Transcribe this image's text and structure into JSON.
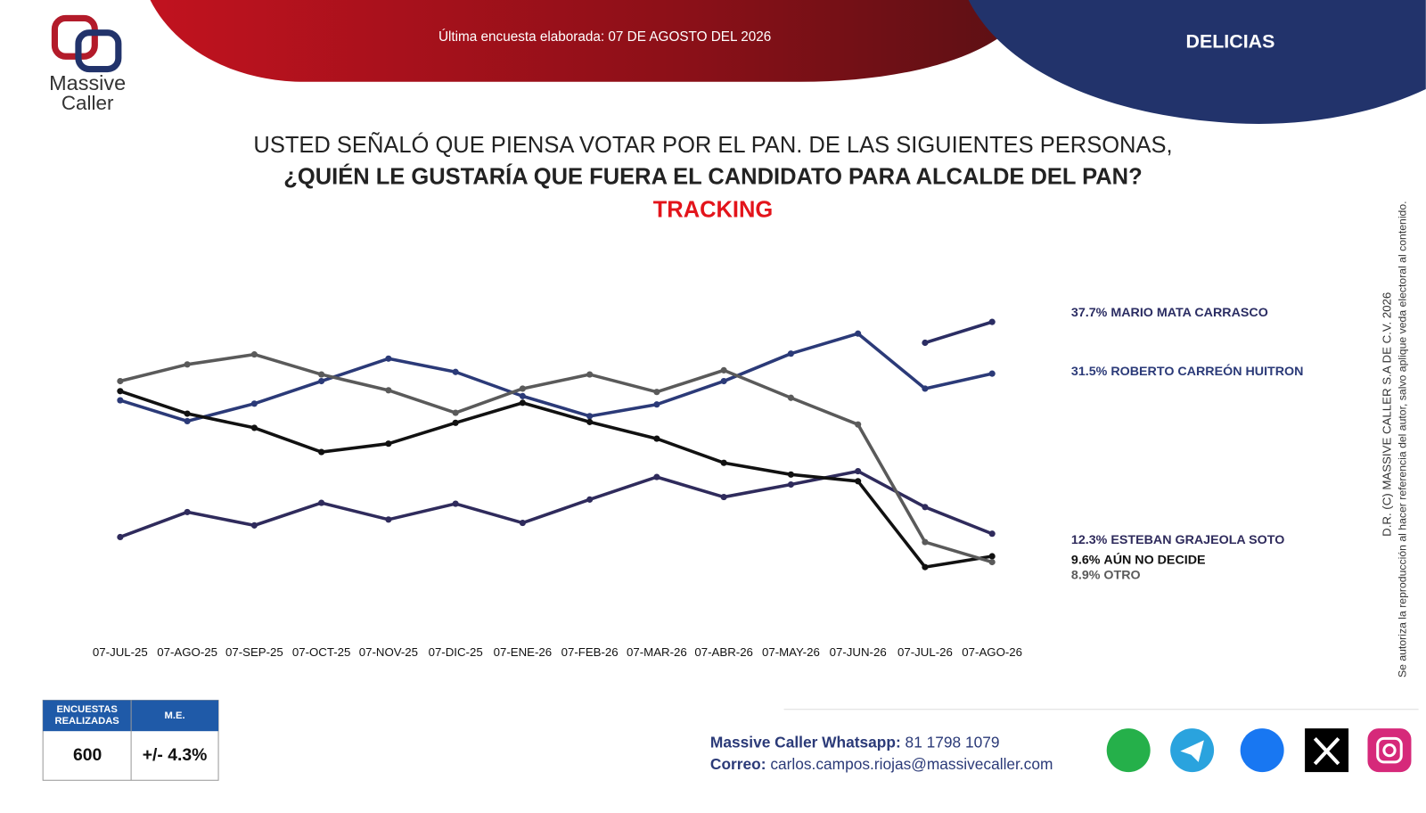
{
  "header": {
    "logo_line1": "Massive",
    "logo_line2": "Caller",
    "survey_date": "Última encuesta elaborada: 07 DE AGOSTO DEL 2026",
    "place": "DELICIAS"
  },
  "chart_data": {
    "type": "line",
    "title_lines": [
      "USTED SEÑALÓ QUE PIENSA VOTAR POR EL PAN. DE LAS SIGUIENTES PERSONAS,",
      "¿QUIÉN LE GUSTARÍA QUE FUERA EL CANDIDATO PARA ALCALDE DEL PAN?"
    ],
    "subtitle": "TRACKING",
    "categories": [
      "07-JUL-25",
      "07-AGO-25",
      "07-SEP-25",
      "07-OCT-25",
      "07-NOV-25",
      "07-DIC-25",
      "07-ENE-26",
      "07-FEB-26",
      "07-MAR-26",
      "07-ABR-26",
      "07-MAY-26",
      "07-JUN-26",
      "07-JUL-26",
      "07-AGO-26"
    ],
    "ylim": [
      0,
      40
    ],
    "series": [
      {
        "name": "MARIO MATA CARRASCO",
        "color": "#2b2d63",
        "values": [
          null,
          null,
          null,
          null,
          null,
          null,
          null,
          null,
          null,
          null,
          null,
          null,
          35.2,
          37.7
        ],
        "value_labels": [
          null,
          null,
          null,
          null,
          null,
          null,
          null,
          null,
          null,
          null,
          null,
          null,
          null,
          "37.7%"
        ]
      },
      {
        "name": "ROBERTO CARREÓN HUITRON",
        "color": "#2b3a78",
        "values": [
          28.3,
          25.8,
          27.9,
          30.6,
          33.3,
          31.7,
          28.8,
          26.4,
          27.8,
          30.6,
          33.9,
          36.3,
          29.7,
          31.5
        ],
        "value_labels": [
          null,
          null,
          null,
          null,
          null,
          null,
          null,
          null,
          null,
          null,
          null,
          null,
          null,
          "31.5%"
        ]
      },
      {
        "name": "ESTEBAN GRAJEOLA SOTO",
        "color": "#2f2b5c",
        "values": [
          11.9,
          14.9,
          13.3,
          16.0,
          14.0,
          15.9,
          13.6,
          16.4,
          19.1,
          16.7,
          18.2,
          19.8,
          15.5,
          12.3
        ],
        "value_labels": [
          null,
          null,
          null,
          null,
          null,
          null,
          null,
          null,
          null,
          null,
          null,
          null,
          null,
          "12.3%"
        ]
      },
      {
        "name": "AÚN NO DECIDE",
        "color": "#111111",
        "values": [
          29.4,
          26.7,
          25.0,
          22.1,
          23.1,
          25.6,
          28.0,
          25.7,
          23.7,
          20.8,
          19.4,
          18.6,
          8.3,
          9.6
        ],
        "value_labels": [
          null,
          null,
          null,
          null,
          null,
          null,
          null,
          null,
          null,
          null,
          null,
          null,
          null,
          "9.6%"
        ]
      },
      {
        "name": "OTRO",
        "color": "#5a5a5a",
        "values": [
          30.6,
          32.6,
          33.8,
          31.4,
          29.5,
          26.8,
          29.7,
          31.4,
          29.3,
          31.9,
          28.6,
          25.4,
          11.3,
          8.9
        ],
        "value_labels": [
          null,
          null,
          null,
          null,
          null,
          null,
          null,
          null,
          null,
          null,
          null,
          null,
          null,
          "8.9%"
        ]
      }
    ]
  },
  "footer": {
    "table": {
      "headers": [
        "ENCUESTAS REALIZADAS",
        "M.E."
      ],
      "values": [
        "600",
        "+/- 4.3%"
      ]
    },
    "whatsapp_label": "Massive Caller Whatsapp:",
    "whatsapp": "81 1798 1079",
    "email_label": "Correo:",
    "email": "carlos.campos.riojas@massivecaller.com"
  },
  "disclaimer": {
    "line1": "D.R. (C) MASSIVE CALLER S.A DE C.V. 2026",
    "line2": "Se autoriza la reproducción al hacer referencia del autor, salvo aplique veda electoral al contenido."
  }
}
